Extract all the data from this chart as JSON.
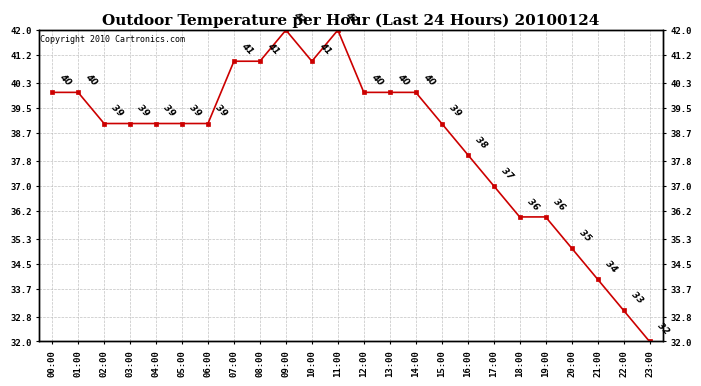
{
  "title": "Outdoor Temperature per Hour (Last 24 Hours) 20100124",
  "copyright_text": "Copyright 2010 Cartronics.com",
  "hours": [
    "00:00",
    "01:00",
    "02:00",
    "03:00",
    "04:00",
    "05:00",
    "06:00",
    "07:00",
    "08:00",
    "09:00",
    "10:00",
    "11:00",
    "12:00",
    "13:00",
    "14:00",
    "15:00",
    "16:00",
    "17:00",
    "18:00",
    "19:00",
    "20:00",
    "21:00",
    "22:00",
    "23:00"
  ],
  "temperatures": [
    40,
    40,
    39,
    39,
    39,
    39,
    39,
    41,
    41,
    42,
    41,
    42,
    40,
    40,
    40,
    39,
    38,
    37,
    36,
    36,
    35,
    34,
    33,
    32
  ],
  "line_color": "#cc0000",
  "marker_color": "#cc0000",
  "bg_color": "#ffffff",
  "grid_color": "#bbbbbb",
  "ylim_min": 32.0,
  "ylim_max": 42.0,
  "yticks": [
    32.0,
    32.8,
    33.7,
    34.5,
    35.3,
    36.2,
    37.0,
    37.8,
    38.7,
    39.5,
    40.3,
    41.2,
    42.0
  ],
  "ytick_labels": [
    "32.0",
    "32.8",
    "33.7",
    "34.5",
    "35.3",
    "36.2",
    "37.0",
    "37.8",
    "38.7",
    "39.5",
    "40.3",
    "41.2",
    "42.0"
  ],
  "title_fontsize": 11,
  "label_fontsize": 6.5,
  "copyright_fontsize": 6,
  "data_label_fontsize": 6.5,
  "data_label_rotation": 315
}
